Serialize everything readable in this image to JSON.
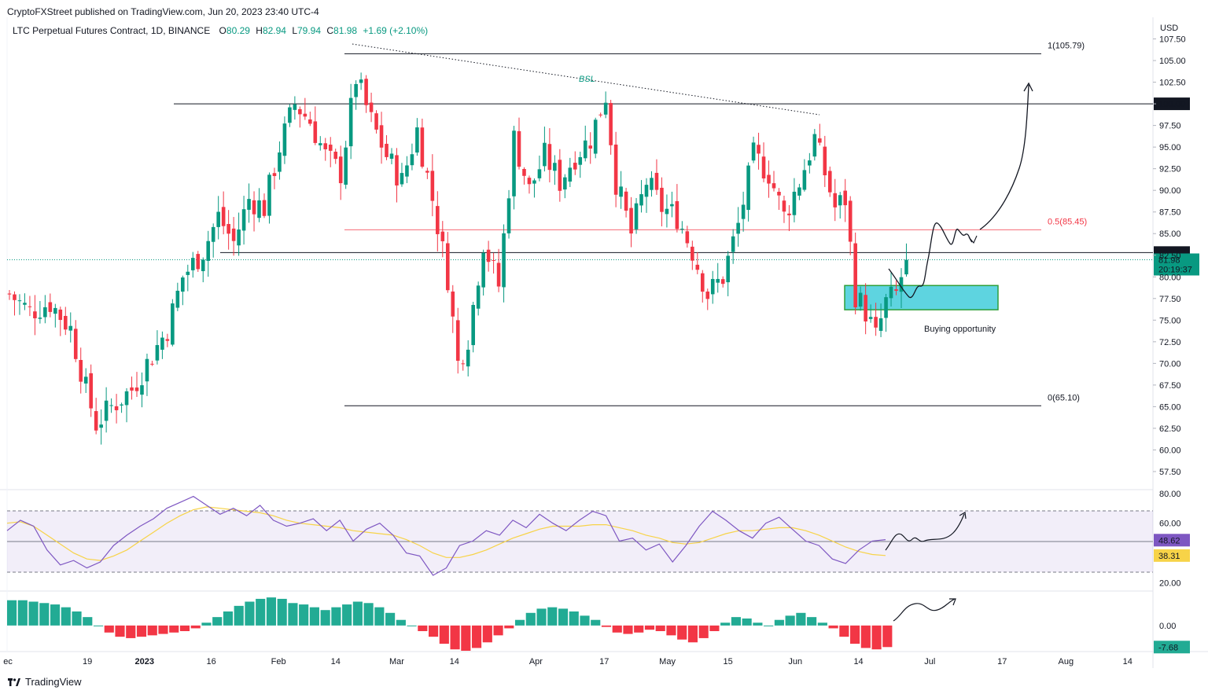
{
  "header": {
    "publisher": "CryptoFXStreet published on TradingView.com, Jun 20, 2023 23:40 UTC-4",
    "symbol": "LTC Perpetual Futures Contract, 1D, BINANCE",
    "o_label": "O",
    "o_value": "80.29",
    "h_label": "H",
    "h_value": "82.94",
    "l_label": "L",
    "l_value": "79.94",
    "c_label": "C",
    "c_value": "81.98",
    "change": "+1.69 (+2.10%)"
  },
  "currency": "USD",
  "footer": {
    "brand": "TradingView"
  },
  "colors": {
    "up": "#089981",
    "down": "#f23645",
    "rsi": "#7e57c2",
    "rsi_ma": "#f7d348",
    "fib_mid": "#f23645",
    "zone": "#5ed4e0"
  },
  "chart_data": [
    {
      "type": "candlestick",
      "title": "LTC Perpetual Futures Contract, 1D, BINANCE",
      "ylabel": "USD",
      "ylim": [
        55.5,
        110.0
      ],
      "y_ticks": [
        "107.50",
        "105.00",
        "102.50",
        "100.00",
        "97.50",
        "95.00",
        "92.50",
        "90.00",
        "87.50",
        "85.00",
        "82.50",
        "80.00",
        "77.50",
        "75.00",
        "72.50",
        "70.00",
        "67.50",
        "65.00",
        "62.50",
        "60.00",
        "57.50"
      ],
      "x_ticks": [
        "ec",
        "19",
        "2023",
        "16",
        "Feb",
        "14",
        "Mar",
        "14",
        "Apr",
        "17",
        "May",
        "15",
        "Jun",
        "14",
        "Jul",
        "17",
        "Aug",
        "14"
      ],
      "price_labels": {
        "level_100": "100.00",
        "level_82": "82.81",
        "last_price": "81.98",
        "countdown": "20:19:37"
      },
      "anchors": [
        {
          "day": 0,
          "price": 78
        },
        {
          "day": 4,
          "price": 76
        },
        {
          "day": 8,
          "price": 77
        },
        {
          "day": 12,
          "price": 74
        },
        {
          "day": 15,
          "price": 67
        },
        {
          "day": 17,
          "price": 63
        },
        {
          "day": 20,
          "price": 65
        },
        {
          "day": 24,
          "price": 67
        },
        {
          "day": 27,
          "price": 70
        },
        {
          "day": 31,
          "price": 74
        },
        {
          "day": 34,
          "price": 80
        },
        {
          "day": 38,
          "price": 83
        },
        {
          "day": 41,
          "price": 87
        },
        {
          "day": 44,
          "price": 84
        },
        {
          "day": 47,
          "price": 89
        },
        {
          "day": 50,
          "price": 88
        },
        {
          "day": 53,
          "price": 95
        },
        {
          "day": 56,
          "price": 100
        },
        {
          "day": 59,
          "price": 98
        },
        {
          "day": 62,
          "price": 94
        },
        {
          "day": 65,
          "price": 92
        },
        {
          "day": 68,
          "price": 103
        },
        {
          "day": 71,
          "price": 98
        },
        {
          "day": 74,
          "price": 94
        },
        {
          "day": 77,
          "price": 91
        },
        {
          "day": 80,
          "price": 97
        },
        {
          "day": 83,
          "price": 89
        },
        {
          "day": 86,
          "price": 80
        },
        {
          "day": 88,
          "price": 70
        },
        {
          "day": 90,
          "price": 73
        },
        {
          "day": 93,
          "price": 84
        },
        {
          "day": 96,
          "price": 79
        },
        {
          "day": 99,
          "price": 96
        },
        {
          "day": 102,
          "price": 90
        },
        {
          "day": 105,
          "price": 94
        },
        {
          "day": 108,
          "price": 91
        },
        {
          "day": 111,
          "price": 94
        },
        {
          "day": 114,
          "price": 96
        },
        {
          "day": 117,
          "price": 101
        },
        {
          "day": 119,
          "price": 91
        },
        {
          "day": 122,
          "price": 85
        },
        {
          "day": 125,
          "price": 91
        },
        {
          "day": 128,
          "price": 88
        },
        {
          "day": 131,
          "price": 87
        },
        {
          "day": 134,
          "price": 83
        },
        {
          "day": 137,
          "price": 78
        },
        {
          "day": 140,
          "price": 80
        },
        {
          "day": 143,
          "price": 86
        },
        {
          "day": 146,
          "price": 94
        },
        {
          "day": 149,
          "price": 92
        },
        {
          "day": 152,
          "price": 87
        },
        {
          "day": 155,
          "price": 91
        },
        {
          "day": 158,
          "price": 96
        },
        {
          "day": 160,
          "price": 92
        },
        {
          "day": 162,
          "price": 88
        },
        {
          "day": 164,
          "price": 89
        },
        {
          "day": 166,
          "price": 78
        },
        {
          "day": 168,
          "price": 76
        },
        {
          "day": 170,
          "price": 73
        },
        {
          "day": 172,
          "price": 77
        },
        {
          "day": 174,
          "price": 78
        },
        {
          "day": 175,
          "price": 80
        },
        {
          "day": 176,
          "price": 81.98
        }
      ],
      "horizontal_levels": [
        {
          "label": "1(105.79)",
          "value": 105.79
        },
        {
          "label": "100.00",
          "value": 100.0
        },
        {
          "label": "0.5(85.45)",
          "value": 85.45
        },
        {
          "label": "82.81",
          "value": 82.81
        },
        {
          "label": "0(65.10)",
          "value": 65.1
        }
      ],
      "annotations": [
        {
          "text": "BSL",
          "type": "dotted trendline"
        },
        {
          "text": "Buying opportunity",
          "zone": [
            76.2,
            79.0
          ]
        }
      ]
    },
    {
      "type": "line",
      "title": "RSI",
      "ylim": [
        15,
        82
      ],
      "y_ticks": [
        "80.00",
        "60.00",
        "20.00"
      ],
      "bands": [
        70,
        30
      ],
      "midline": 50,
      "series": [
        {
          "name": "RSI",
          "last": "48.62",
          "values": [
            55,
            62,
            58,
            42,
            32,
            35,
            30,
            34,
            45,
            52,
            58,
            63,
            70,
            74,
            78,
            72,
            66,
            70,
            65,
            72,
            62,
            58,
            60,
            63,
            55,
            62,
            48,
            56,
            60,
            52,
            40,
            38,
            25,
            30,
            45,
            48,
            55,
            52,
            62,
            57,
            66,
            60,
            55,
            62,
            68,
            65,
            48,
            50,
            42,
            46,
            34,
            45,
            58,
            68,
            62,
            55,
            50,
            60,
            64,
            56,
            48,
            45,
            36,
            33,
            42,
            48,
            49
          ]
        },
        {
          "name": "RSI MA",
          "last": "38.31",
          "values": [
            60,
            61,
            58,
            52,
            46,
            40,
            36,
            35,
            38,
            42,
            48,
            54,
            60,
            65,
            69,
            71,
            70,
            69,
            68,
            67,
            65,
            62,
            60,
            59,
            58,
            57,
            55,
            54,
            53,
            52,
            49,
            45,
            40,
            37,
            37,
            39,
            42,
            46,
            50,
            53,
            56,
            58,
            58,
            58,
            59,
            59,
            57,
            55,
            52,
            50,
            47,
            46,
            47,
            50,
            53,
            55,
            55,
            56,
            57,
            57,
            55,
            52,
            48,
            44,
            41,
            39,
            38.31
          ]
        }
      ]
    },
    {
      "type": "bar",
      "title": "Histogram",
      "ylim": [
        -9,
        12
      ],
      "y_ticks": [
        "0.00"
      ],
      "last_label": "-7.68",
      "values": [
        9,
        9,
        8.5,
        8,
        7.5,
        6.5,
        5,
        3,
        0,
        -2.5,
        -4,
        -4.5,
        -4,
        -3.5,
        -3,
        -2.5,
        -2,
        -1,
        1,
        3,
        5,
        7,
        8.5,
        9.5,
        10,
        9.5,
        8,
        7.5,
        6.5,
        5.5,
        6.5,
        7.5,
        8.5,
        8,
        6.5,
        4.5,
        2,
        0,
        -2,
        -4,
        -6.5,
        -8.5,
        -9,
        -8,
        -6,
        -3.5,
        -1,
        2,
        4.5,
        6,
        6.5,
        6,
        5,
        3.5,
        2,
        -0.5,
        -2.5,
        -3,
        -2.5,
        -1.5,
        -2,
        -3.5,
        -5,
        -6,
        -4.5,
        -2,
        1,
        3,
        2.5,
        1,
        0,
        2,
        3.5,
        4.5,
        3,
        1,
        -1,
        -4,
        -6.5,
        -8,
        -8.5,
        -7.68
      ]
    }
  ]
}
